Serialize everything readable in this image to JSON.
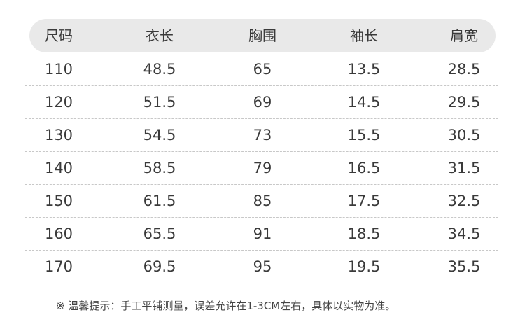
{
  "table": {
    "headers": [
      "尺码",
      "衣长",
      "胸围",
      "袖长",
      "肩宽"
    ],
    "rows": [
      [
        "110",
        "48.5",
        "65",
        "13.5",
        "28.5"
      ],
      [
        "120",
        "51.5",
        "69",
        "14.5",
        "29.5"
      ],
      [
        "130",
        "54.5",
        "73",
        "15.5",
        "30.5"
      ],
      [
        "140",
        "58.5",
        "79",
        "16.5",
        "31.5"
      ],
      [
        "150",
        "61.5",
        "85",
        "17.5",
        "32.5"
      ],
      [
        "160",
        "65.5",
        "91",
        "18.5",
        "34.5"
      ],
      [
        "170",
        "69.5",
        "95",
        "19.5",
        "35.5"
      ]
    ]
  },
  "note": "※ 温馨提示：手工平铺测量，误差允许在1-3CM左右，具体以实物为准。",
  "colors": {
    "header_bg": "#e9e9e9",
    "text": "#3a3a3a",
    "divider": "#c8c8c8"
  }
}
